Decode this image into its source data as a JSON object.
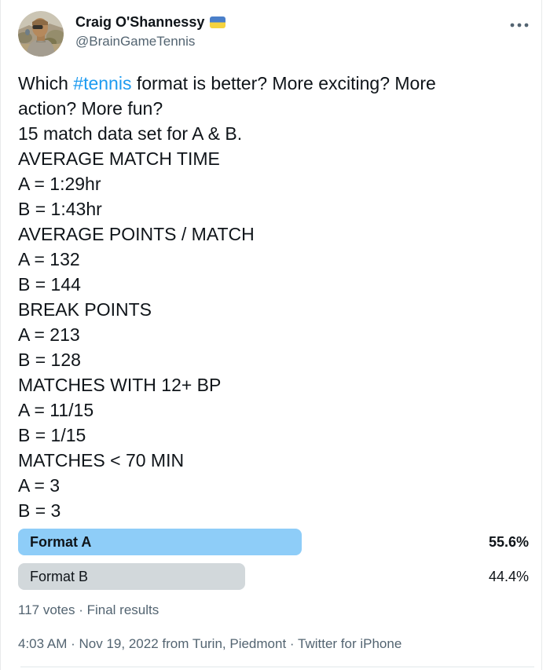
{
  "colors": {
    "link_blue": "#1d9bf0",
    "text_primary": "#0f1419",
    "text_secondary": "#536471",
    "poll_winner_bar": "#8ecdf8",
    "poll_loser_bar": "#d2d8db",
    "flag_blue": "#4a7fc9",
    "flag_yellow": "#f6d33e"
  },
  "header": {
    "name": "Craig O'Shannessy",
    "flag_icon": "ukraine-flag",
    "handle": "@BrainGameTennis",
    "more_icon": "more-horizontal"
  },
  "body": {
    "before_hashtag": "Which ",
    "hashtag": "#tennis",
    "after_hashtag": " format is better? More exciting? More\naction? More fun?\n15 match data set for A & B.\nAVERAGE MATCH TIME\nA = 1:29hr\nB = 1:43hr\nAVERAGE POINTS / MATCH\nA = 132\nB = 144\nBREAK POINTS\nA = 213\nB = 128\nMATCHES WITH 12+ BP\nA = 11/15\nB = 1/15\nMATCHES < 70 MIN\nA = 3\nB = 3"
  },
  "poll": {
    "options": [
      {
        "label": "Format A",
        "percent_label": "55.6%",
        "bar_width": "55.6%",
        "winner": true
      },
      {
        "label": "Format B",
        "percent_label": "44.4%",
        "bar_width": "44.4%",
        "winner": false
      }
    ],
    "votes": "117 votes",
    "separator": "·",
    "status": "Final results"
  },
  "footer": {
    "time": "4:03 AM",
    "separator": "·",
    "date": "Nov 19, 2022",
    "from_word": "from",
    "location": "Turin, Piedmont",
    "source": "Twitter for iPhone"
  }
}
